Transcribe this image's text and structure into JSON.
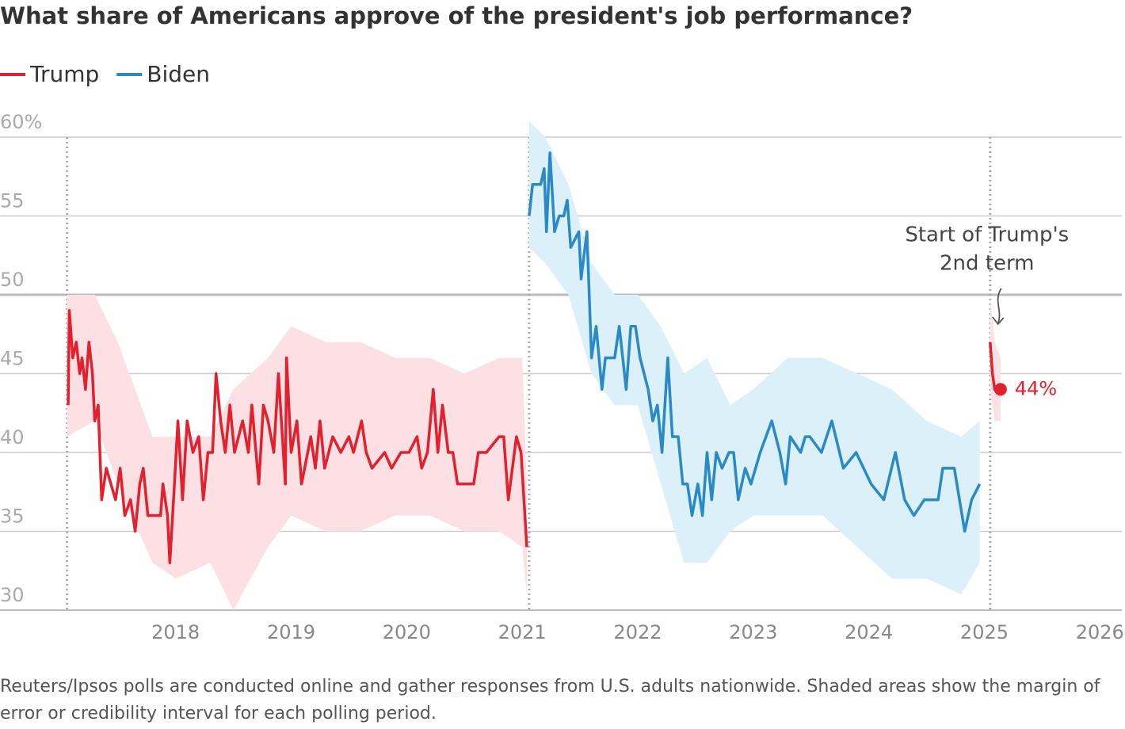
{
  "chart_data": {
    "type": "line",
    "title": "What share of Americans approve of the president's job performance?",
    "note": "Reuters/Ipsos polls are conducted online and gather responses from U.S. adults nationwide. Shaded areas show the margin of error or credibility interval for each polling period.",
    "annotation": [
      "Start of Trump's",
      "2nd term"
    ],
    "xlim": [
      2016.48,
      2026.19
    ],
    "xticks": [
      2018,
      2019,
      2020,
      2021,
      2022,
      2023,
      2024,
      2025,
      2026
    ],
    "ylim": [
      30,
      60
    ],
    "yticks": [
      30,
      35,
      40,
      45,
      50,
      55,
      {
        "value": 60,
        "label": "60%"
      }
    ],
    "grid": true,
    "legend": "top-left",
    "term_starts": [
      2017.06,
      2021.06,
      2025.05
    ],
    "series": [
      {
        "name": "Trump",
        "color": "#e3202e",
        "band_color": "#fde0e3",
        "x": [
          2017.07,
          2017.08,
          2017.11,
          2017.14,
          2017.17,
          2017.19,
          2017.22,
          2017.25,
          2017.28,
          2017.3,
          2017.33,
          2017.36,
          2017.4,
          2017.44,
          2017.48,
          2017.52,
          2017.56,
          2017.61,
          2017.65,
          2017.69,
          2017.72,
          2017.76,
          2017.87,
          2017.89,
          2017.93,
          2017.95,
          2017.99,
          2018.02,
          2018.06,
          2018.1,
          2018.15,
          2018.2,
          2018.24,
          2018.28,
          2018.32,
          2018.35,
          2018.39,
          2018.43,
          2018.47,
          2018.51,
          2018.58,
          2018.63,
          2018.66,
          2018.72,
          2018.76,
          2018.8,
          2018.85,
          2018.89,
          2018.95,
          2018.96,
          2019.0,
          2019.05,
          2019.09,
          2019.17,
          2019.21,
          2019.25,
          2019.29,
          2019.36,
          2019.43,
          2019.5,
          2019.54,
          2019.61,
          2019.65,
          2019.7,
          2019.81,
          2019.87,
          2019.95,
          2020.02,
          2020.09,
          2020.13,
          2020.18,
          2020.23,
          2020.27,
          2020.31,
          2020.36,
          2020.4,
          2020.44,
          2020.51,
          2020.58,
          2020.62,
          2020.69,
          2020.8,
          2020.84,
          2020.88,
          2020.95,
          2020.99,
          2021.04
        ],
        "values": [
          43,
          49,
          46,
          47,
          45,
          46,
          44,
          47,
          45,
          42,
          43,
          37,
          39,
          38,
          37,
          39,
          36,
          37,
          35,
          38,
          39,
          36,
          36,
          38,
          36,
          33,
          38,
          42,
          37,
          42,
          40,
          41,
          37,
          40,
          40,
          45,
          42,
          40,
          43,
          40,
          42,
          40,
          43,
          38,
          43,
          42,
          40,
          45,
          38,
          46,
          40,
          42,
          38,
          41,
          39,
          42,
          39,
          41,
          40,
          41,
          40,
          42,
          40,
          39,
          40,
          39,
          40,
          40,
          41,
          39,
          40,
          44,
          40,
          43,
          40,
          40,
          38,
          38,
          38,
          40,
          40,
          41,
          41,
          37,
          41,
          40,
          34
        ],
        "band": {
          "x": [
            2017.06,
            2017.3,
            2017.5,
            2017.8,
            2018.0,
            2018.3,
            2018.5,
            2018.8,
            2019.0,
            2019.3,
            2019.6,
            2019.9,
            2020.2,
            2020.5,
            2020.8,
            2021.0,
            2021.04
          ],
          "lower": [
            41,
            42,
            38,
            33,
            32,
            33,
            30,
            34,
            36,
            35,
            35,
            36,
            36,
            35,
            35,
            34,
            31
          ],
          "upper": [
            50,
            50,
            47,
            41,
            41,
            41,
            44,
            46,
            48,
            47,
            47,
            46,
            46,
            45,
            46,
            46,
            38
          ]
        }
      },
      {
        "name": "Biden",
        "color": "#2a8ac6",
        "band_color": "#dcf0f9",
        "x": [
          2021.06,
          2021.09,
          2021.16,
          2021.19,
          2021.21,
          2021.24,
          2021.28,
          2021.32,
          2021.36,
          2021.39,
          2021.42,
          2021.49,
          2021.51,
          2021.56,
          2021.6,
          2021.64,
          2021.69,
          2021.72,
          2021.8,
          2021.84,
          2021.87,
          2021.9,
          2021.94,
          2021.98,
          2022.02,
          2022.09,
          2022.13,
          2022.17,
          2022.21,
          2022.26,
          2022.3,
          2022.35,
          2022.39,
          2022.43,
          2022.47,
          2022.52,
          2022.56,
          2022.6,
          2022.64,
          2022.68,
          2022.73,
          2022.79,
          2022.83,
          2022.87,
          2022.93,
          2022.98,
          2023.06,
          2023.16,
          2023.23,
          2023.28,
          2023.32,
          2023.41,
          2023.45,
          2023.49,
          2023.59,
          2023.68,
          2023.78,
          2023.89,
          2024.02,
          2024.13,
          2024.23,
          2024.31,
          2024.39,
          2024.48,
          2024.6,
          2024.64,
          2024.74,
          2024.83,
          2024.89,
          2024.96
        ],
        "values": [
          55,
          57,
          57,
          58,
          54,
          59,
          54,
          55,
          55,
          56,
          53,
          54,
          51,
          54,
          46,
          48,
          44,
          46,
          46,
          48,
          46,
          44,
          48,
          48,
          46,
          44,
          42,
          43,
          40,
          46,
          41,
          41,
          38,
          38,
          36,
          38,
          36,
          40,
          37,
          40,
          39,
          40,
          40,
          37,
          39,
          38,
          40,
          42,
          40,
          38,
          41,
          40,
          41,
          41,
          40,
          42,
          39,
          40,
          38,
          37,
          40,
          37,
          36,
          37,
          37,
          39,
          39,
          35,
          37,
          38
        ],
        "band": {
          "x": [
            2021.06,
            2021.2,
            2021.4,
            2021.6,
            2021.8,
            2022.0,
            2022.2,
            2022.4,
            2022.6,
            2022.8,
            2023.0,
            2023.3,
            2023.6,
            2023.9,
            2024.2,
            2024.5,
            2024.8,
            2024.96
          ],
          "lower": [
            53,
            52,
            50,
            45,
            43,
            43,
            38,
            33,
            33,
            35,
            36,
            36,
            36,
            34,
            32,
            32,
            31,
            33
          ],
          "upper": [
            61,
            60,
            57,
            52,
            50,
            50,
            48,
            45,
            46,
            43,
            44,
            46,
            46,
            45,
            44,
            42,
            41,
            42
          ]
        }
      },
      {
        "name": "Trump",
        "color": "#e3202e",
        "band_color": "#fde0e3",
        "legend": false,
        "x": [
          2025.05,
          2025.07,
          2025.09,
          2025.14
        ],
        "values": [
          47,
          45,
          44,
          44
        ],
        "value_labels": [
          null,
          null,
          null,
          "44%"
        ],
        "band": {
          "x": [
            2025.05,
            2025.09,
            2025.14
          ],
          "lower": [
            44,
            42,
            42
          ],
          "upper": [
            50,
            47,
            46
          ]
        }
      }
    ]
  }
}
